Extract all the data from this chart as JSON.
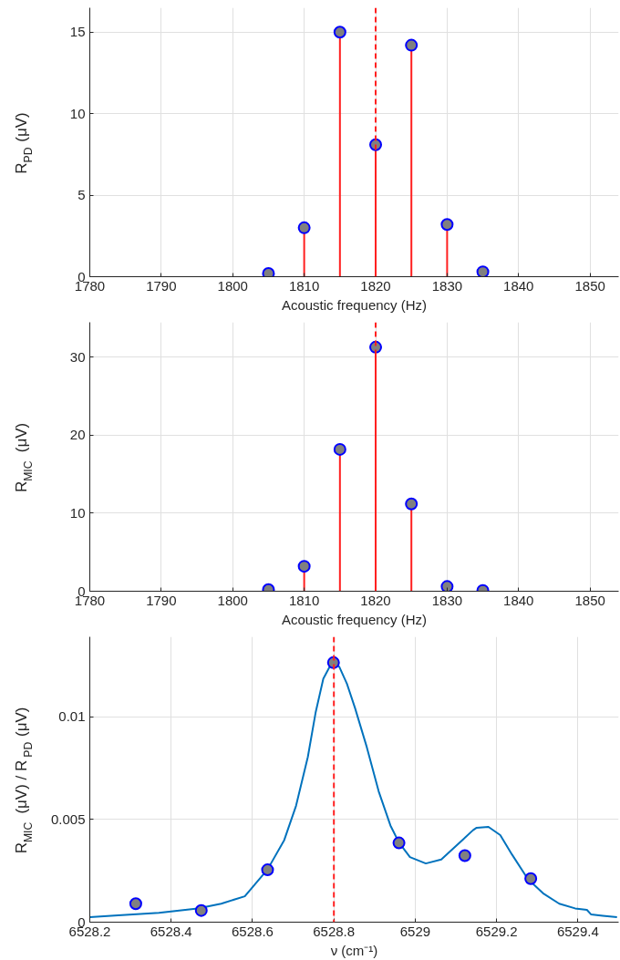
{
  "chart_data": [
    {
      "type": "lollipop",
      "xlabel": "Acoustic frequency (Hz)",
      "ylabel": "R$_{PD}$ (μV)",
      "x": [
        1805,
        1810,
        1815,
        1820,
        1825,
        1830,
        1835
      ],
      "values": [
        0.2,
        3.0,
        15.0,
        8.1,
        14.2,
        3.2,
        0.3
      ],
      "color": "#808080",
      "marker": "circle",
      "xlim": [
        1780,
        1854
      ],
      "xticks": [
        1780,
        1790,
        1800,
        1810,
        1820,
        1830,
        1840,
        1850
      ],
      "ylim": [
        0,
        16.5
      ],
      "yticks": [
        0,
        5,
        10,
        15
      ],
      "grid": true,
      "ref_lines": [
        {
          "axis": "x",
          "value": 1820,
          "color": "#ff2020",
          "line_style": "dashed"
        }
      ]
    },
    {
      "type": "lollipop",
      "xlabel": "Acoustic frequency (Hz)",
      "ylabel": "R$_{MIC}$ (μV)",
      "x": [
        1805,
        1810,
        1815,
        1820,
        1825,
        1830,
        1835
      ],
      "values": [
        0.2,
        3.2,
        18.2,
        31.3,
        11.2,
        0.6,
        0.1
      ],
      "color": "#808080",
      "marker": "circle",
      "xlim": [
        1780,
        1854
      ],
      "xticks": [
        1780,
        1790,
        1800,
        1810,
        1820,
        1830,
        1840,
        1850
      ],
      "ylim": [
        0,
        34.5
      ],
      "yticks": [
        0,
        10,
        20,
        30
      ],
      "grid": true,
      "ref_lines": [
        {
          "axis": "x",
          "value": 1820,
          "color": "#ff2020",
          "line_style": "dashed"
        }
      ]
    },
    {
      "type": "line",
      "xlabel": "ν (cm⁻¹)",
      "ylabel": "R$_{MIC}$ (μV) / R$_{PD}$ (μV)",
      "xlim": [
        6528.2,
        6529.5
      ],
      "xticks": [
        6528.2,
        6528.4,
        6528.6,
        6528.8,
        6529,
        6529.2,
        6529.4
      ],
      "ylim": [
        0,
        0.0139
      ],
      "yticks": [
        0,
        0.005,
        0.01
      ],
      "grid": true,
      "ref_lines": [
        {
          "axis": "x",
          "value": 6528.8,
          "color": "#ff2020",
          "line_style": "dashed"
        }
      ],
      "series": [
        {
          "type": "line",
          "color": "#0072bd",
          "x": [
            6528.2,
            6528.27,
            6528.37,
            6528.465,
            6528.523,
            6528.581,
            6528.637,
            6528.678,
            6528.707,
            6528.736,
            6528.755,
            6528.774,
            6528.793,
            6528.813,
            6528.832,
            6528.852,
            6528.881,
            6528.91,
            6528.939,
            6528.96,
            6528.987,
            6529.026,
            6529.064,
            6529.103,
            6529.142,
            6529.151,
            6529.18,
            6529.209,
            6529.238,
            6529.277,
            6529.316,
            6529.354,
            6529.393,
            6529.422,
            6529.432,
            6529.461,
            6529.496
          ],
          "values": [
            0.00024,
            0.00033,
            0.00045,
            0.00067,
            0.0009,
            0.00126,
            0.00257,
            0.004,
            0.00567,
            0.00805,
            0.0102,
            0.01186,
            0.01257,
            0.01245,
            0.01162,
            0.01043,
            0.00852,
            0.00638,
            0.00471,
            0.00388,
            0.00317,
            0.00286,
            0.00305,
            0.00376,
            0.00448,
            0.0046,
            0.00464,
            0.00424,
            0.00329,
            0.0021,
            0.00138,
            0.0009,
            0.00067,
            0.0006,
            0.00038,
            0.00031,
            0.00024
          ]
        },
        {
          "type": "scatter",
          "color": "#808080",
          "marker": "circle",
          "x": [
            6528.313,
            6528.474,
            6528.637,
            6528.799,
            6528.96,
            6529.122,
            6529.284
          ],
          "values": [
            0.0009,
            0.00057,
            0.00255,
            0.01264,
            0.00386,
            0.00324,
            0.00212
          ]
        }
      ]
    }
  ]
}
